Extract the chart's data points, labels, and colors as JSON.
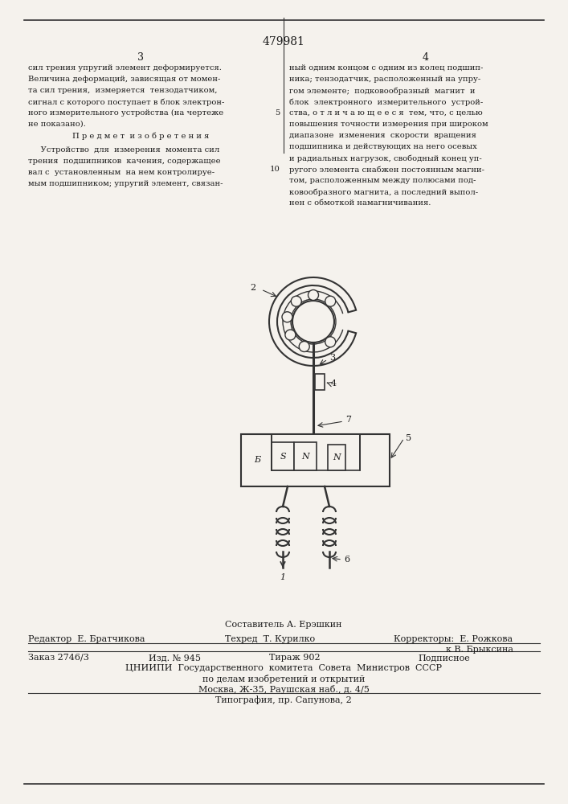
{
  "patent_number": "479981",
  "page_left": "3",
  "page_right": "4",
  "col1_text": [
    "сил трения упругий элемент деформируется.",
    "Величина деформаций, зависящая от момен-",
    "та сил трения,  измеряется  тензодатчиком,",
    "сигнал с которого поступает в блок электрон-",
    "ного измерительного устройства (на чертеже",
    "не показано)."
  ],
  "predmet_header": "П р е д м е т  и з о б р е т е н и я",
  "predmet_text": [
    "     Устройство  для  измерения  момента сил",
    "трения  подшипников  качения, содержащее",
    "вал с  установленным  на нем контролируе-",
    "мым подшипником; упругий элемент, связан-"
  ],
  "col2_text": [
    "ный одним концом с одним из колец подшип-",
    "ника; тензодатчик, расположенный на упру-",
    "гом элементе;  подковообразный  магнит  и",
    "блок  электронного  измерительного  устрой-",
    "ства, о т л и ч а ю щ е е с я  тем, что, с целью",
    "повышения точности измерения при широком",
    "диапазоне  изменения  скорости  вращения",
    "подшипника и действующих на него осевых",
    "и радиальных нагрузок, свободный конец уп-",
    "ругого элемента снабжен постоянным магни-",
    "том, расположенным между полюсами под-",
    "ковообразного магнита, а последний выпол-",
    "нен с обмоткой намагничивания."
  ],
  "col2_linenum": "5",
  "col2_linenum2": "10",
  "bottom_author": "Составитель А. Ерэшкин",
  "editor_label": "Редактор",
  "editor_name": "Е. Братчикова",
  "techred_label": "Техред",
  "techred_name": "Т. Курилко",
  "correctors_label": "Корректоры:",
  "corrector1": "Е. Рожкова",
  "corrector2": "к В. Брыксина",
  "order_label": "Заказ 2746/3",
  "izd_label": "Изд. № 945",
  "tirazh_label": "Тираж 902",
  "podpisnoe": "Подписное",
  "tsniip_text": "ЦНИИПИ  Государственного  комитета  Совета  Министров  СССР",
  "tsniip_text2": "по делам изобретений и открытий",
  "tsniip_text3": "Москва, Ж-35, Раушская наб., д. 4/5",
  "tipografia": "Типография, пр. Сапунова, 2",
  "bg_color": "#f5f2ed",
  "text_color": "#1a1a1a",
  "line_color": "#333333"
}
